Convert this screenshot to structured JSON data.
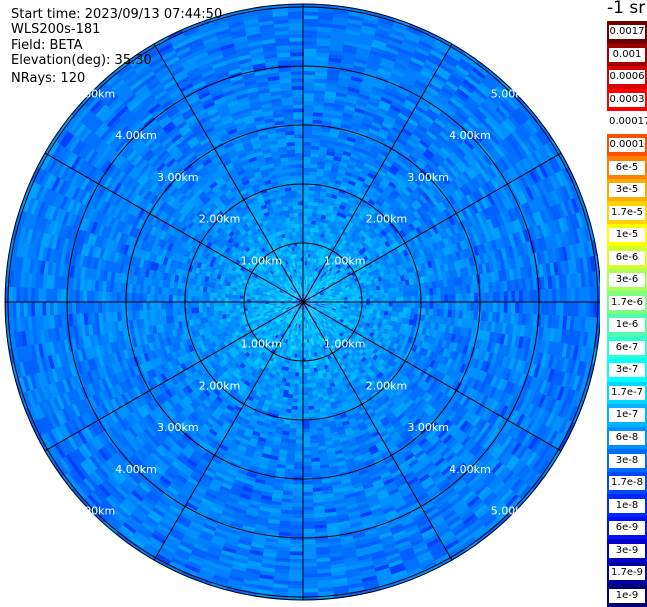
{
  "header": {
    "start_time": "Start time: 2023/09/13 07:44:50",
    "instrument": "WLS200s-181",
    "field": "Field: BETA",
    "elevation": "Elevation(deg): 35.30",
    "nrays": "NRays: 120"
  },
  "colorbar": {
    "units": "-1 sr",
    "labels": [
      "0.0017",
      "0.001",
      "0.0006",
      "0.0003",
      "0.00017",
      "0.0001",
      "6e-5",
      "3e-5",
      "1.7e-5",
      "1e-5",
      "6e-6",
      "3e-6",
      "1.7e-6",
      "1e-6",
      "6e-7",
      "3e-7",
      "1.7e-7",
      "1e-7",
      "6e-8",
      "3e-8",
      "1.7e-8",
      "1e-8",
      "6e-9",
      "3e-9",
      "1.7e-9",
      "1e-9"
    ],
    "colors": [
      "#6e0000",
      "#a00000",
      "#d60000",
      "#ff0000",
      "#ffffff",
      "#ff5000",
      "#ff8000",
      "#ffaa00",
      "#ffd200",
      "#ffff00",
      "#d4ff2a",
      "#a8ff57",
      "#7cff82",
      "#50ffae",
      "#28ffd6",
      "#00ffff",
      "#00d8ff",
      "#00b4ff",
      "#0090ff",
      "#006cff",
      "#0048ff",
      "#0028ff",
      "#0010f0",
      "#0000c8",
      "#0000a0",
      "#000078"
    ]
  },
  "chart_data": {
    "type": "heatmap",
    "projection": "polar (PPI)",
    "nrays": 120,
    "range_rings_km": [
      1,
      2,
      3,
      4,
      5
    ],
    "range_ring_labels": [
      "1.00km",
      "2.00km",
      "3.00km",
      "4.00km",
      "5.00km"
    ],
    "max_range_km": 5.05,
    "spokes_deg": [
      0,
      30,
      60,
      90,
      120,
      150,
      180,
      210,
      240,
      270,
      300,
      330
    ],
    "field": "BETA",
    "elevation_deg": 35.3,
    "dominant_value_range": [
      "1e-8",
      "1.7e-7"
    ]
  }
}
